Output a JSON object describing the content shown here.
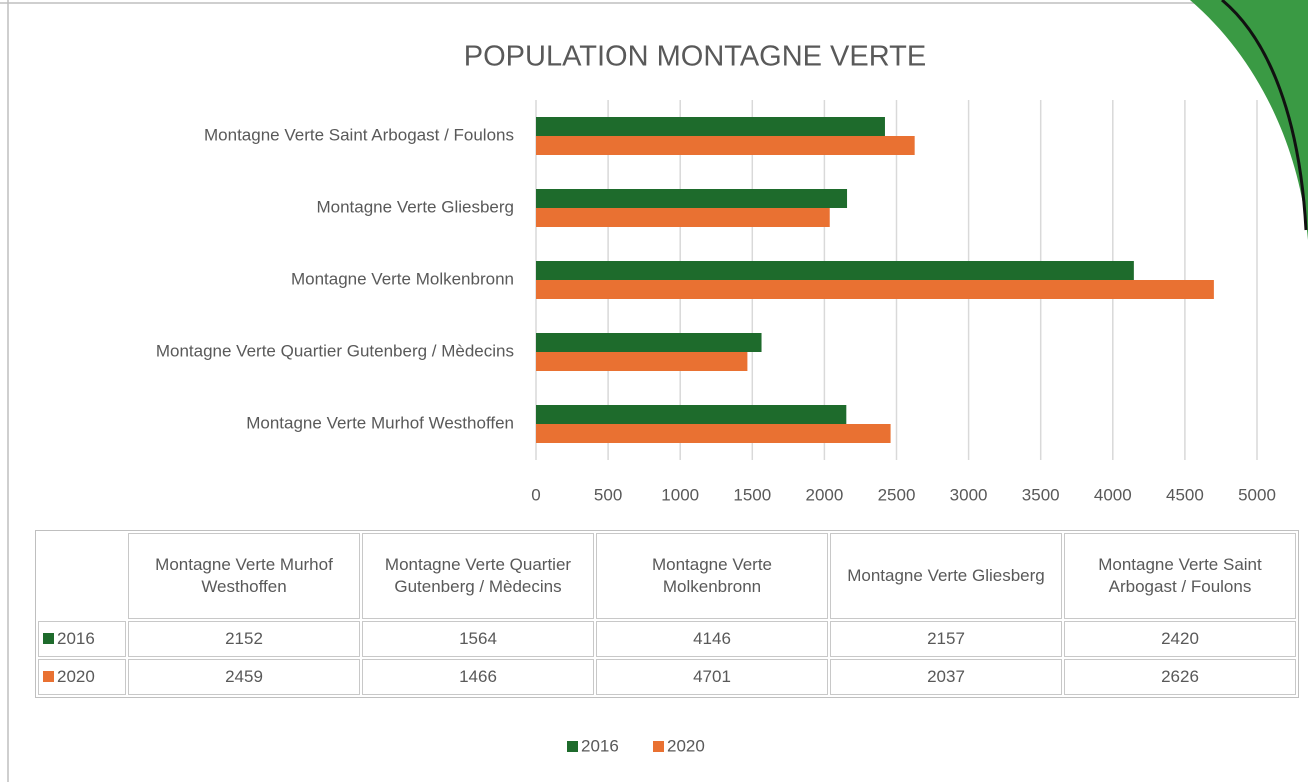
{
  "chart_data": {
    "type": "bar",
    "title": "POPULATION MONTAGNE VERTE",
    "categories": [
      "Montagne Verte Murhof Westhoffen",
      "Montagne Verte Quartier Gutenberg / Mèdecins",
      "Montagne Verte Molkenbronn",
      "Montagne Verte Gliesberg",
      "Montagne Verte Saint Arbogast / Foulons"
    ],
    "series": [
      {
        "name": "2016",
        "color": "#1e6b2c",
        "values": [
          2152,
          1564,
          4146,
          2157,
          2420
        ]
      },
      {
        "name": "2020",
        "color": "#e97132",
        "values": [
          2459,
          1466,
          4701,
          2037,
          2626
        ]
      }
    ],
    "xlim": [
      0,
      5000
    ],
    "xticks": [
      0,
      500,
      1000,
      1500,
      2000,
      2500,
      3000,
      3500,
      4000,
      4500,
      5000
    ],
    "grid": true,
    "legend": "bottom"
  }
}
